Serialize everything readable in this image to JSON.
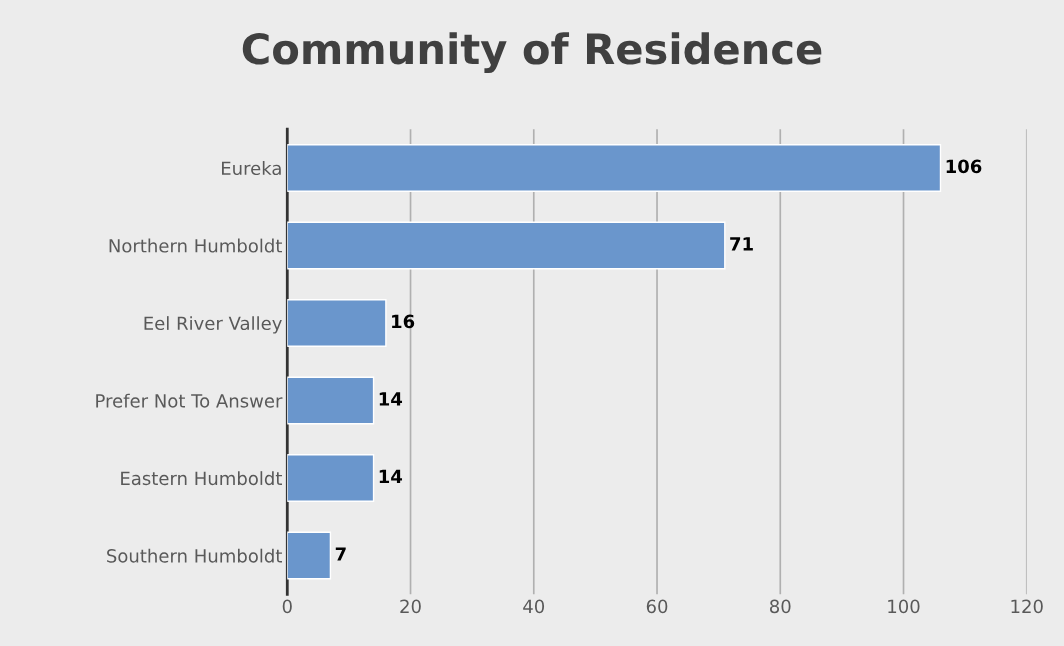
{
  "chart_data": {
    "type": "bar",
    "orientation": "horizontal",
    "title": "Community of Residence",
    "categories": [
      "Eureka",
      "Northern Humboldt",
      "Eel River Valley",
      "Prefer Not To Answer",
      "Eastern Humboldt",
      "Southern Humboldt"
    ],
    "values": [
      106,
      71,
      16,
      14,
      14,
      7
    ],
    "color": "#6a96cc",
    "xlim": [
      0,
      120
    ],
    "xticks": [
      0,
      20,
      40,
      60,
      80,
      100,
      120
    ],
    "grid": "x",
    "data_labels": true
  }
}
